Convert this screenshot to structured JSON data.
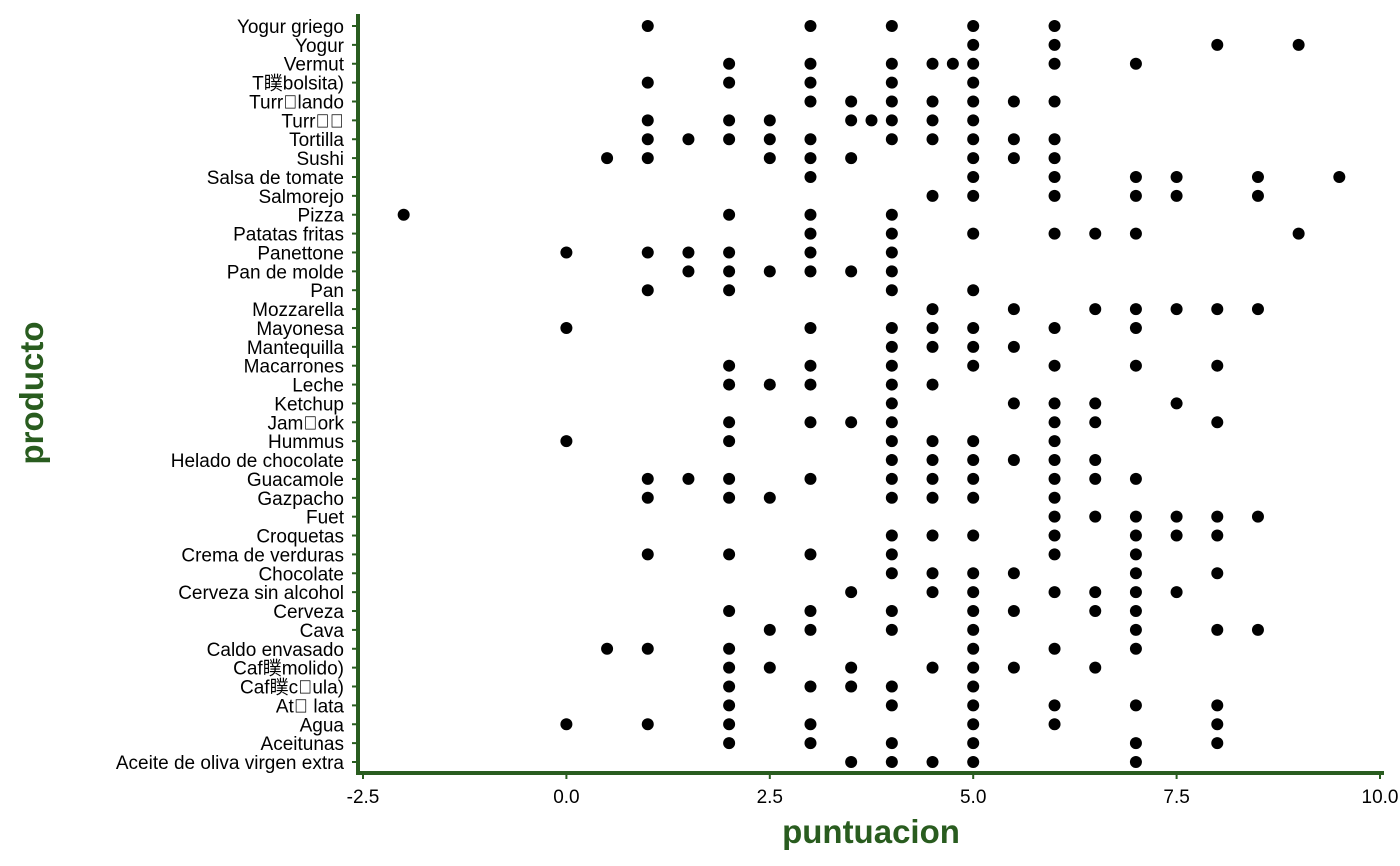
{
  "colors": {
    "axis": "#295c1f",
    "points": "#000000",
    "text": "#000000",
    "background": "#ffffff"
  },
  "chart_data": {
    "type": "scatter",
    "xlabel": "puntuacion",
    "ylabel": "producto",
    "xlim": [
      -2.5,
      10.0
    ],
    "x_ticks": [
      "-2.5",
      "0.0",
      "2.5",
      "5.0",
      "7.5",
      "10.0"
    ],
    "grid": false,
    "categories": [
      "Aceite de oliva virgen extra",
      "Aceitunas",
      "Agua",
      "At\u0000 lata",
      "Caf瞨c\u0000ula)",
      "Caf瞨molido)",
      "Caldo envasado",
      "Cava",
      "Cerveza",
      "Cerveza sin alcohol",
      "Chocolate",
      "Crema de verduras",
      "Croquetas",
      "Fuet",
      "Gazpacho",
      "Guacamole",
      "Helado de chocolate",
      "Hummus",
      "Jam\u0000ork",
      "Ketchup",
      "Leche",
      "Macarrones",
      "Mantequilla",
      "Mayonesa",
      "Mozzarella",
      "Pan",
      "Pan de molde",
      "Panettone",
      "Patatas fritas",
      "Pizza",
      "Salmorejo",
      "Salsa de tomate",
      "Sushi",
      "Tortilla",
      "Turr\u0000\u0000",
      "Turr\u0000lando",
      "T瞨bolsita)",
      "Vermut",
      "Yogur",
      "Yogur griego"
    ],
    "points": {
      "Aceite de oliva virgen extra": [
        3.5,
        4,
        4.5,
        5,
        7
      ],
      "Aceitunas": [
        2,
        3,
        4,
        5,
        7,
        8
      ],
      "Agua": [
        0,
        1,
        2,
        3,
        5,
        6,
        8
      ],
      "At\u0000 lata": [
        2,
        4,
        5,
        6,
        7,
        8
      ],
      "Caf瞨c\u0000ula)": [
        2,
        3,
        3.5,
        4,
        5
      ],
      "Caf瞨molido)": [
        2,
        2.5,
        3.5,
        4.5,
        5,
        5.5,
        6.5
      ],
      "Caldo envasado": [
        0.5,
        1,
        2,
        5,
        6,
        7
      ],
      "Cava": [
        2.5,
        3,
        4,
        5,
        7,
        8,
        8.5
      ],
      "Cerveza": [
        2,
        3,
        4,
        5,
        5.5,
        6.5,
        7
      ],
      "Cerveza sin alcohol": [
        3.5,
        4.5,
        5,
        6,
        6.5,
        7,
        7.5
      ],
      "Chocolate": [
        4,
        4.5,
        5,
        5.5,
        7,
        8
      ],
      "Crema de verduras": [
        1,
        2,
        3,
        4,
        6,
        7
      ],
      "Croquetas": [
        4,
        4.5,
        5,
        6,
        7,
        7.5,
        8
      ],
      "Fuet": [
        6,
        6.5,
        7,
        7.5,
        8,
        8.5
      ],
      "Gazpacho": [
        1,
        2,
        2.5,
        4,
        4.5,
        5,
        6
      ],
      "Guacamole": [
        1,
        1.5,
        2,
        3,
        4,
        4.5,
        5,
        6,
        6.5,
        7
      ],
      "Helado de chocolate": [
        4,
        4.5,
        5,
        5.5,
        6,
        6.5
      ],
      "Hummus": [
        0,
        2,
        4,
        4.5,
        5,
        6
      ],
      "Jam\u0000ork": [
        2,
        3,
        3.5,
        4,
        6,
        6.5,
        8
      ],
      "Ketchup": [
        4,
        5.5,
        6,
        6.5,
        7.5
      ],
      "Leche": [
        2,
        2.5,
        3,
        4,
        4.5
      ],
      "Macarrones": [
        2,
        3,
        4,
        5,
        6,
        7,
        8
      ],
      "Mantequilla": [
        4,
        4.5,
        5,
        5.5
      ],
      "Mayonesa": [
        0,
        3,
        4,
        4.5,
        5,
        6,
        7
      ],
      "Mozzarella": [
        4.5,
        5.5,
        6.5,
        7,
        7.5,
        8,
        8.5
      ],
      "Pan": [
        1,
        2,
        4,
        5
      ],
      "Pan de molde": [
        1.5,
        2,
        2.5,
        3,
        3.5,
        4
      ],
      "Panettone": [
        0,
        1,
        1.5,
        2,
        3,
        4
      ],
      "Patatas fritas": [
        3,
        4,
        5,
        6,
        6.5,
        7,
        9
      ],
      "Pizza": [
        -2,
        2,
        3,
        4
      ],
      "Salmorejo": [
        4.5,
        5,
        6,
        7,
        7.5,
        8.5
      ],
      "Salsa de tomate": [
        3,
        5,
        6,
        7,
        7.5,
        8.5,
        9.5
      ],
      "Sushi": [
        0.5,
        1,
        2.5,
        3,
        3.5,
        5,
        5.5,
        6
      ],
      "Tortilla": [
        1,
        1.5,
        2,
        2.5,
        3,
        4,
        4.5,
        5,
        5.5,
        6
      ],
      "Turr\u0000\u0000": [
        1,
        2,
        2.5,
        3.5,
        3.75,
        4,
        4.5,
        5
      ],
      "Turr\u0000lando": [
        3,
        3.5,
        4,
        4.5,
        5,
        5.5,
        6
      ],
      "T瞨bolsita)": [
        1,
        2,
        3,
        4,
        5
      ],
      "Vermut": [
        2,
        3,
        4,
        4.5,
        4.75,
        5,
        6,
        7
      ],
      "Yogur": [
        5,
        6,
        8,
        9
      ],
      "Yogur griego": [
        1,
        3,
        4,
        5,
        6
      ]
    }
  }
}
